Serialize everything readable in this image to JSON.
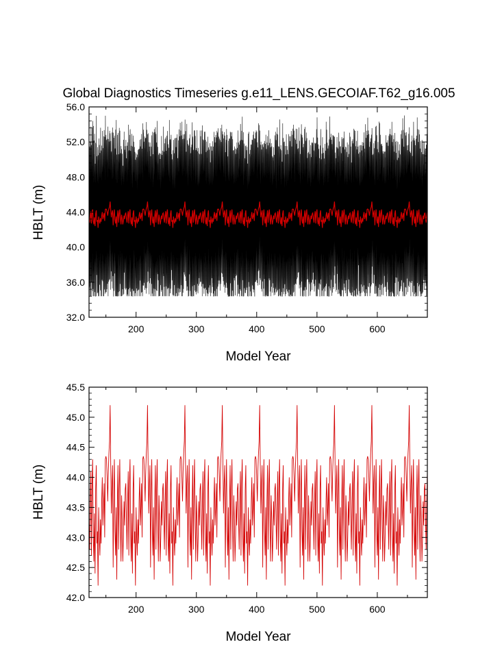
{
  "title": "Global Diagnostics Timeseries g.e11_LENS.GECOIAF.T62_g16.005",
  "chart_data": [
    {
      "type": "line",
      "xlabel": "Model Year",
      "ylabel": "HBLT (m)",
      "xlim": [
        122,
        683
      ],
      "ylim": [
        32.0,
        56.0
      ],
      "xticks": [
        200,
        300,
        400,
        500,
        600
      ],
      "yticks": [
        "32.0",
        "36.0",
        "40.0",
        "44.0",
        "48.0",
        "52.0",
        "56.0"
      ],
      "series": [
        {
          "color": "#000000",
          "style": "monthly",
          "cycle_years": 62,
          "annual_range_low": [
            34.4,
            37.5
          ],
          "annual_range_high": [
            50.5,
            55.7
          ]
        },
        {
          "color": "#d40000",
          "style": "annual mean",
          "cycle_years": 62,
          "range": [
            42.2,
            45.2
          ]
        }
      ]
    },
    {
      "type": "line",
      "xlabel": "Model Year",
      "ylabel": "HBLT (m)",
      "xlim": [
        122,
        683
      ],
      "ylim": [
        42.0,
        45.5
      ],
      "xticks": [
        200,
        300,
        400,
        500,
        600
      ],
      "yticks": [
        "42.0",
        "42.5",
        "43.0",
        "43.5",
        "44.0",
        "44.5",
        "45.0",
        "45.5"
      ],
      "series": [
        {
          "color": "#d40000",
          "style": "annual mean",
          "cycle_years": 62,
          "cycle_values": [
            43.3,
            42.8,
            43.6,
            44.1,
            42.7,
            43.9,
            44.3,
            43.0,
            42.6,
            43.4,
            42.4,
            43.8,
            44.2,
            42.9,
            43.1,
            42.2,
            43.5,
            43.0,
            42.7,
            43.3,
            42.9,
            43.6,
            44.0,
            43.2,
            43.5,
            43.9,
            43.0,
            44.3,
            44.35,
            44.3,
            44.0,
            43.6,
            44.1,
            44.4,
            44.6,
            45.2,
            44.2,
            43.4,
            43.9,
            44.2,
            42.5,
            43.7,
            44.3,
            43.1,
            42.7,
            43.5,
            42.3,
            43.6,
            44.2,
            42.8,
            43.8,
            44.3,
            43.2,
            42.6,
            43.7,
            43.3,
            42.6,
            43.0,
            43.6,
            43.2,
            43.8,
            43.9
          ]
        }
      ]
    }
  ]
}
